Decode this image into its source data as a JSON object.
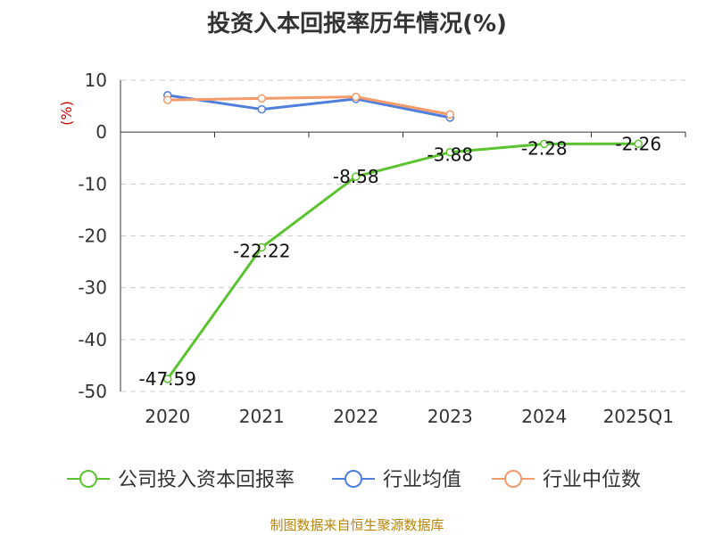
{
  "chart_data": {
    "type": "line",
    "title": "投资入本回报率历年情况(%)",
    "ylabel": "(%)",
    "categories": [
      "2020",
      "2021",
      "2022",
      "2023",
      "2024",
      "2025Q1"
    ],
    "ylim": [
      -50,
      10
    ],
    "yticks": [
      10,
      0,
      -10,
      -20,
      -30,
      -40,
      -50
    ],
    "grid": true,
    "legend_position": "bottom",
    "series": [
      {
        "name": "公司投入资本回报率",
        "color": "#5bc32f",
        "values": [
          -47.59,
          -22.22,
          -8.58,
          -3.88,
          -2.28,
          -2.26
        ],
        "labels": [
          "-47.59",
          "-22.22",
          "-8.58",
          "-3.88",
          "-2.28",
          "-2.26"
        ]
      },
      {
        "name": "行业均值",
        "color": "#4f7fdc",
        "values": [
          7.1,
          4.4,
          6.4,
          2.8,
          null,
          null
        ]
      },
      {
        "name": "行业中位数",
        "color": "#f59a6a",
        "values": [
          6.2,
          6.5,
          6.8,
          3.4,
          null,
          null
        ]
      }
    ]
  },
  "footer": {
    "source": "制图数据来自恒生聚源数据库"
  }
}
